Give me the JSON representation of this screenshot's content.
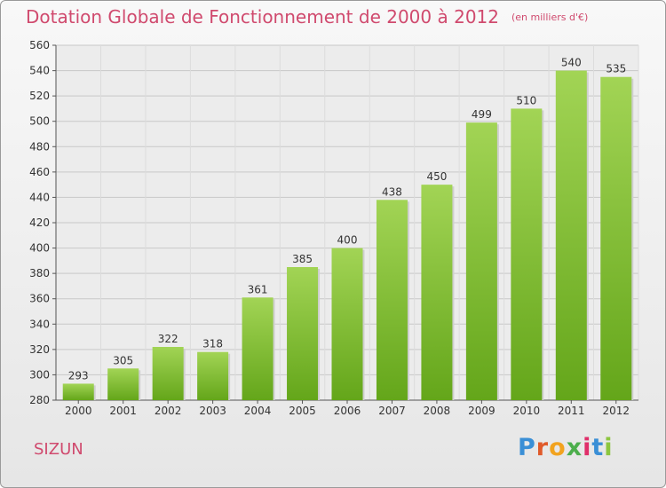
{
  "title": "Dotation Globale de Fonctionnement de 2000 à 2012",
  "subtitle": "(en milliers d'€)",
  "commune": "SIZUN",
  "logo": {
    "letters": [
      "P",
      "r",
      "o",
      "x",
      "i",
      "t",
      "i"
    ],
    "colors": [
      "#3a8fd6",
      "#e05a2a",
      "#f2a31f",
      "#4cae4c",
      "#e02f6a",
      "#3a8fd6",
      "#8cc63f"
    ]
  },
  "colors": {
    "bar_light": "#a2d455",
    "bar_dark": "#64a61a",
    "title": "#d04a6e"
  },
  "chart_data": {
    "type": "bar",
    "categories": [
      "2000",
      "2001",
      "2002",
      "2003",
      "2004",
      "2005",
      "2006",
      "2007",
      "2008",
      "2009",
      "2010",
      "2011",
      "2012"
    ],
    "values": [
      293,
      305,
      322,
      318,
      361,
      385,
      400,
      438,
      450,
      499,
      510,
      540,
      535
    ],
    "ylim": [
      280,
      560
    ],
    "yticks": [
      280,
      300,
      320,
      340,
      360,
      380,
      400,
      420,
      440,
      460,
      480,
      500,
      520,
      540,
      560
    ],
    "grid": true,
    "xlabel": "",
    "ylabel": ""
  }
}
